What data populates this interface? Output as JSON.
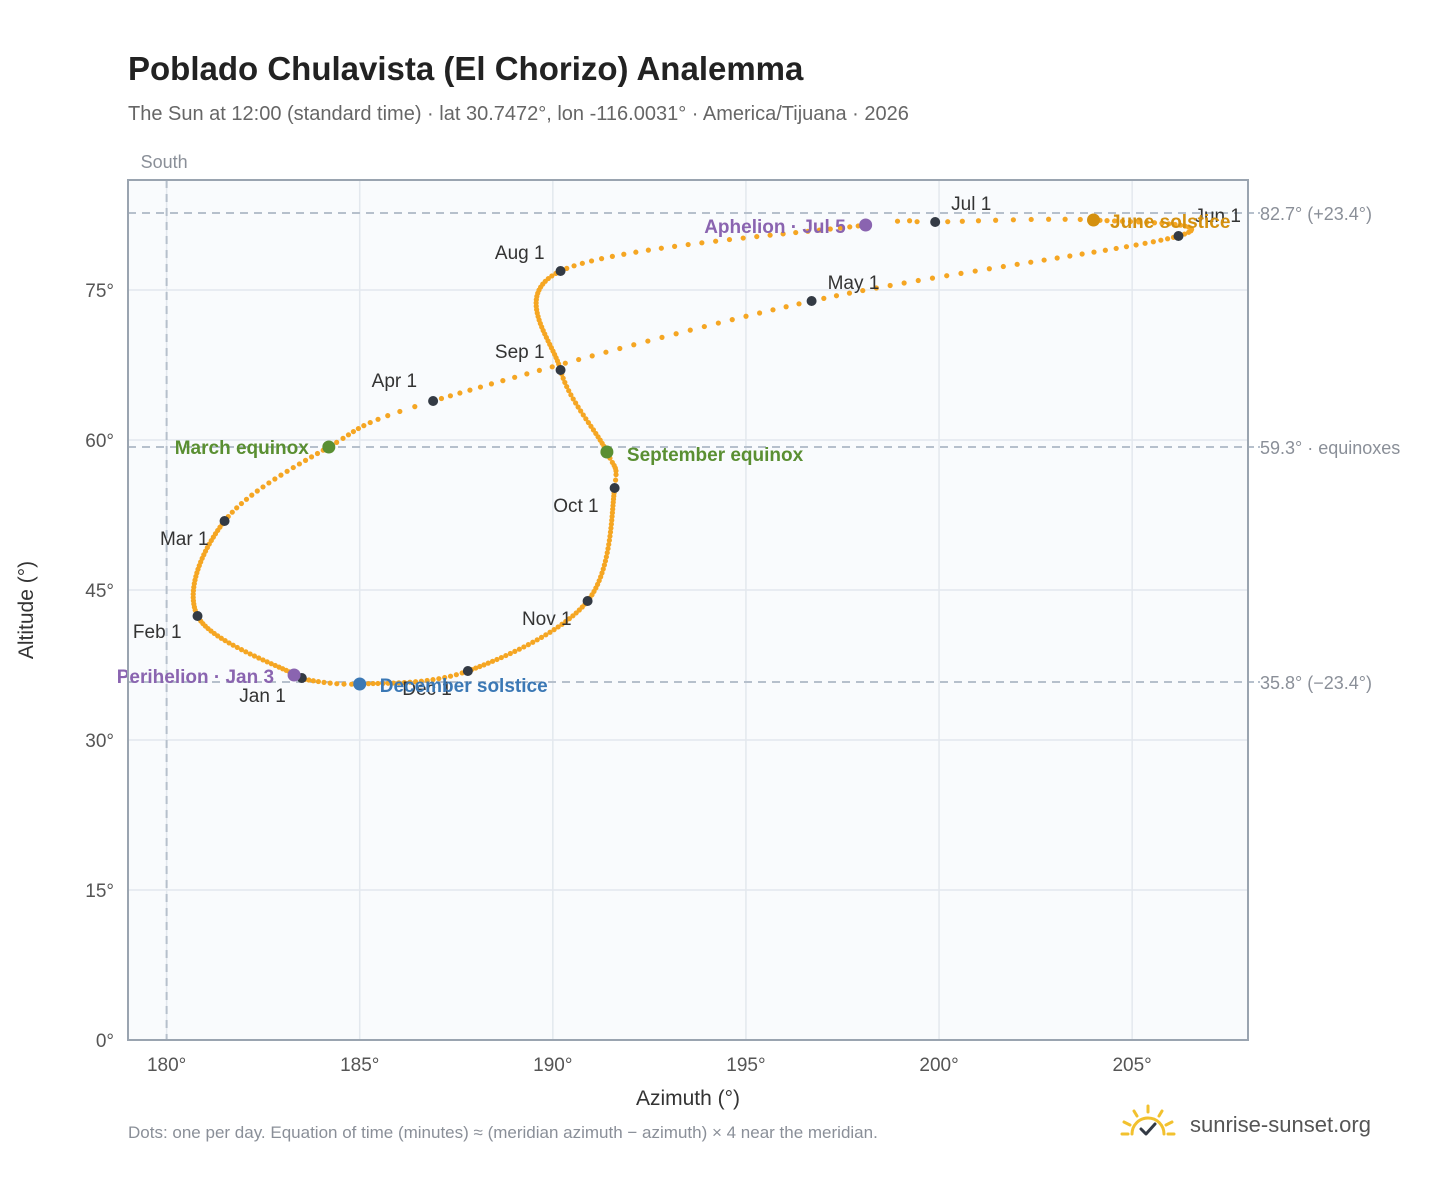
{
  "title": "Poblado Chulavista (El Chorizo) Analemma",
  "subtitle": "The Sun at 12:00 (standard time) · lat 30.7472°, lon -116.0031° · America/Tijuana · 2026",
  "footnote": "Dots: one per day. Equation of time (minutes) ≈ (meridian azimuth − azimuth) × 4 near the meridian.",
  "brand": {
    "name": "sunrise-sunset.org",
    "icon": "sun-logo-icon"
  },
  "chart_data": {
    "type": "scatter",
    "xlabel": "Azimuth (°)",
    "ylabel": "Altitude (°)",
    "xlim": [
      179,
      208
    ],
    "ylim": [
      0,
      86
    ],
    "x_ticks": [
      {
        "v": 180,
        "label": "180°"
      },
      {
        "v": 185,
        "label": "185°"
      },
      {
        "v": 190,
        "label": "190°"
      },
      {
        "v": 195,
        "label": "195°"
      },
      {
        "v": 200,
        "label": "200°"
      },
      {
        "v": 205,
        "label": "205°"
      }
    ],
    "y_ticks": [
      {
        "v": 0,
        "label": "0°"
      },
      {
        "v": 15,
        "label": "15°"
      },
      {
        "v": 30,
        "label": "30°"
      },
      {
        "v": 45,
        "label": "45°"
      },
      {
        "v": 60,
        "label": "60°"
      },
      {
        "v": 75,
        "label": "75°"
      }
    ],
    "grid": true,
    "meridian": {
      "az": 180,
      "label": "South"
    },
    "reference_lines": [
      {
        "alt": 82.7,
        "label": "82.7° (+23.4°)"
      },
      {
        "alt": 59.3,
        "label": "59.3° · equinoxes"
      },
      {
        "alt": 35.8,
        "label": "35.8° (−23.4°)"
      }
    ],
    "path_keypoints": [
      {
        "doy": 1,
        "az": 183.5,
        "alt": 36.2
      },
      {
        "doy": 32,
        "az": 180.8,
        "alt": 42.4
      },
      {
        "doy": 60,
        "az": 181.5,
        "alt": 51.9
      },
      {
        "doy": 79,
        "az": 184.2,
        "alt": 59.3
      },
      {
        "doy": 91,
        "az": 186.9,
        "alt": 63.9
      },
      {
        "doy": 121,
        "az": 196.7,
        "alt": 73.9
      },
      {
        "doy": 152,
        "az": 206.2,
        "alt": 80.4
      },
      {
        "doy": 172,
        "az": 204.0,
        "alt": 82.0
      },
      {
        "doy": 182,
        "az": 199.9,
        "alt": 81.8
      },
      {
        "doy": 186,
        "az": 198.1,
        "alt": 81.5
      },
      {
        "doy": 213,
        "az": 190.2,
        "alt": 76.9
      },
      {
        "doy": 244,
        "az": 190.2,
        "alt": 67.0
      },
      {
        "doy": 266,
        "az": 191.4,
        "alt": 58.8
      },
      {
        "doy": 274,
        "az": 191.6,
        "alt": 55.2
      },
      {
        "doy": 305,
        "az": 190.9,
        "alt": 43.9
      },
      {
        "doy": 335,
        "az": 187.8,
        "alt": 36.9
      },
      {
        "doy": 355,
        "az": 185.0,
        "alt": 35.6
      },
      {
        "doy": 365,
        "az": 183.5,
        "alt": 36.1
      }
    ],
    "month_markers": [
      {
        "label": "Jan 1",
        "az": 183.5,
        "alt": 36.2
      },
      {
        "label": "Feb 1",
        "az": 180.8,
        "alt": 42.4
      },
      {
        "label": "Mar 1",
        "az": 181.5,
        "alt": 51.9
      },
      {
        "label": "Apr 1",
        "az": 186.9,
        "alt": 63.9
      },
      {
        "label": "May 1",
        "az": 196.7,
        "alt": 73.9
      },
      {
        "label": "Jun 1",
        "az": 206.2,
        "alt": 80.4
      },
      {
        "label": "Jul 1",
        "az": 199.9,
        "alt": 81.8
      },
      {
        "label": "Aug 1",
        "az": 190.2,
        "alt": 76.9
      },
      {
        "label": "Sep 1",
        "az": 190.2,
        "alt": 67.0
      },
      {
        "label": "Oct 1",
        "az": 191.6,
        "alt": 55.2
      },
      {
        "label": "Nov 1",
        "az": 190.9,
        "alt": 43.9
      },
      {
        "label": "Dec 1",
        "az": 187.8,
        "alt": 36.9
      }
    ],
    "events": [
      {
        "label": "March equinox",
        "az": 184.2,
        "alt": 59.3,
        "color": "#5a8f32"
      },
      {
        "label": "September equinox",
        "az": 191.4,
        "alt": 58.8,
        "color": "#5a8f32"
      },
      {
        "label": "June solstice",
        "az": 204.0,
        "alt": 82.0,
        "color": "#d4900f"
      },
      {
        "label": "December solstice",
        "az": 185.0,
        "alt": 35.6,
        "color": "#3b78b5"
      },
      {
        "label": "Perihelion · Jan 3",
        "az": 183.3,
        "alt": 36.5,
        "color": "#8a64b0"
      },
      {
        "label": "Aphelion · Jul 5",
        "az": 198.1,
        "alt": 81.5,
        "color": "#8a64b0"
      }
    ],
    "colors": {
      "path": "#f5a623",
      "marker": "#333a44",
      "plot_bg": "#f9fbfd",
      "grid": "#e3e8ee",
      "frame": "#9aa4b0"
    }
  }
}
